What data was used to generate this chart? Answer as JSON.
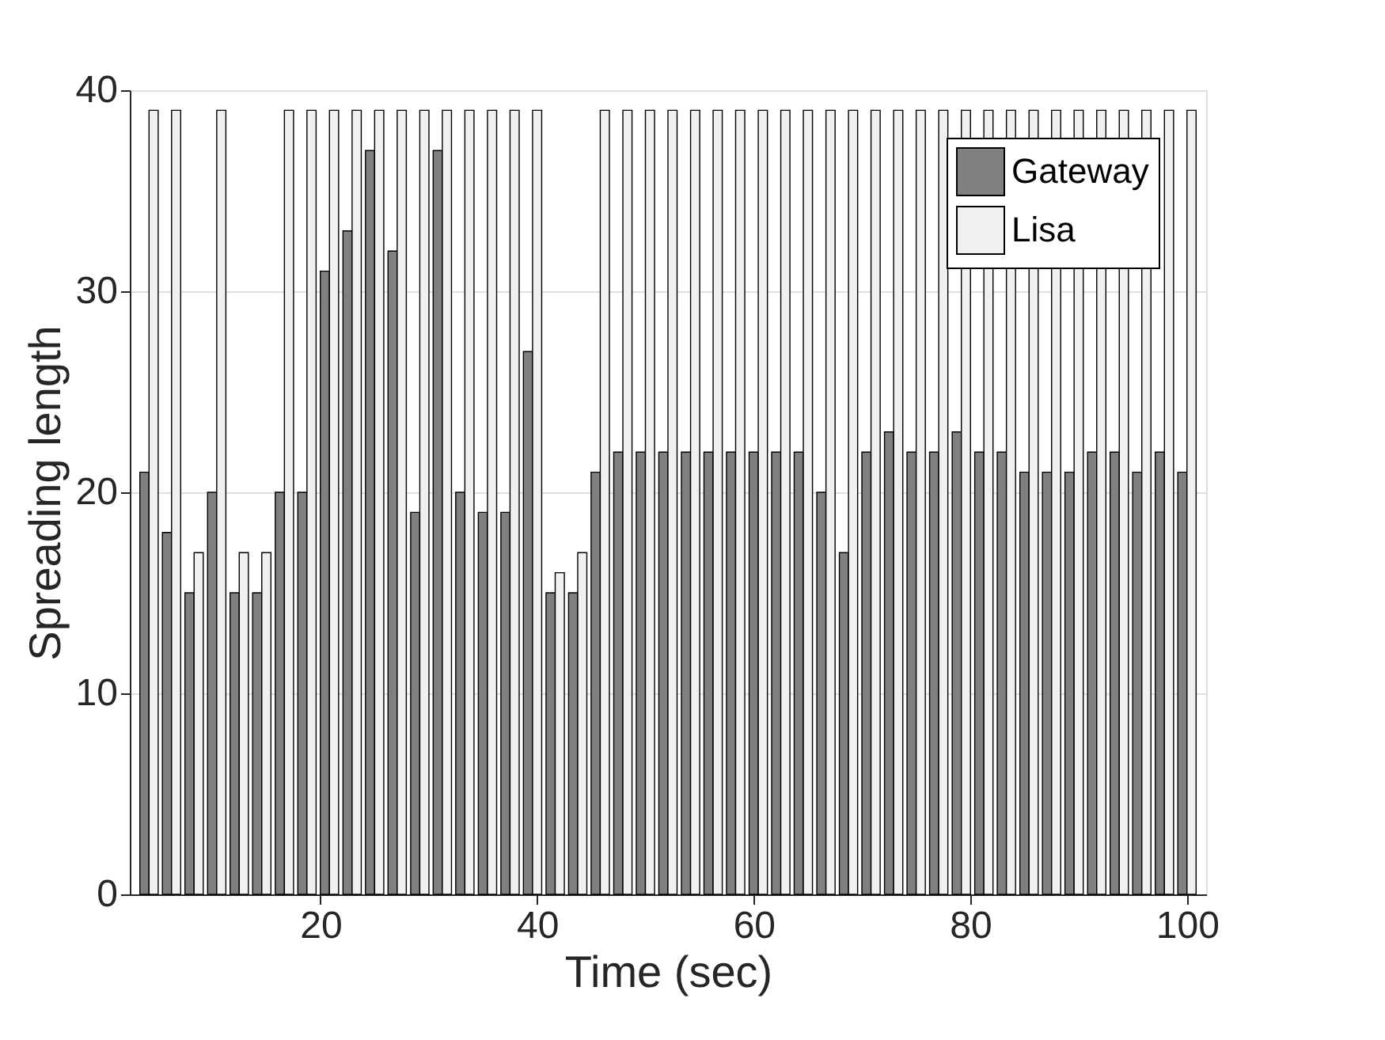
{
  "chart_data": {
    "type": "bar",
    "xlabel": "Time (sec)",
    "ylabel": "Spreading length",
    "x": [
      4.17,
      6.25,
      8.33,
      10.42,
      12.5,
      14.58,
      16.67,
      18.75,
      20.83,
      22.92,
      25,
      27.08,
      29.17,
      31.25,
      33.33,
      35.42,
      37.5,
      39.58,
      41.67,
      43.75,
      45.83,
      47.92,
      50,
      52.08,
      54.17,
      56.25,
      58.33,
      60.42,
      62.5,
      64.58,
      66.67,
      68.75,
      70.83,
      72.92,
      75,
      77.08,
      79.17,
      81.25,
      83.33,
      85.42,
      87.5,
      89.58,
      91.67,
      93.75,
      95.83,
      97.92,
      100
    ],
    "series": [
      {
        "name": "Gateway",
        "color": "#808080",
        "values": [
          21,
          18,
          15,
          20,
          15,
          15,
          20,
          20,
          31,
          33,
          37,
          32,
          19,
          37,
          20,
          19,
          19,
          27,
          15,
          15,
          21,
          22,
          22,
          22,
          22,
          22,
          22,
          22,
          22,
          22,
          20,
          17,
          22,
          23,
          22,
          22,
          23,
          22,
          22,
          21,
          21,
          21,
          22,
          22,
          21,
          22,
          21
        ]
      },
      {
        "name": "Lisa",
        "color": "#f0f0f0",
        "values": [
          39,
          39,
          17,
          39,
          17,
          17,
          39,
          39,
          39,
          39,
          39,
          39,
          39,
          39,
          39,
          39,
          39,
          39,
          16,
          17,
          39,
          39,
          39,
          39,
          39,
          39,
          39,
          39,
          39,
          39,
          39,
          39,
          39,
          39,
          39,
          39,
          39,
          39,
          39,
          39,
          39,
          39,
          39,
          39,
          39,
          39,
          39
        ]
      }
    ],
    "xlim": [
      3.125,
      101.04
    ],
    "xticks": [
      20,
      40,
      60,
      80,
      100
    ],
    "ylim": [
      0,
      40
    ],
    "yticks": [
      0,
      10,
      20,
      30,
      40
    ],
    "grid": "y",
    "legend": "top right"
  }
}
